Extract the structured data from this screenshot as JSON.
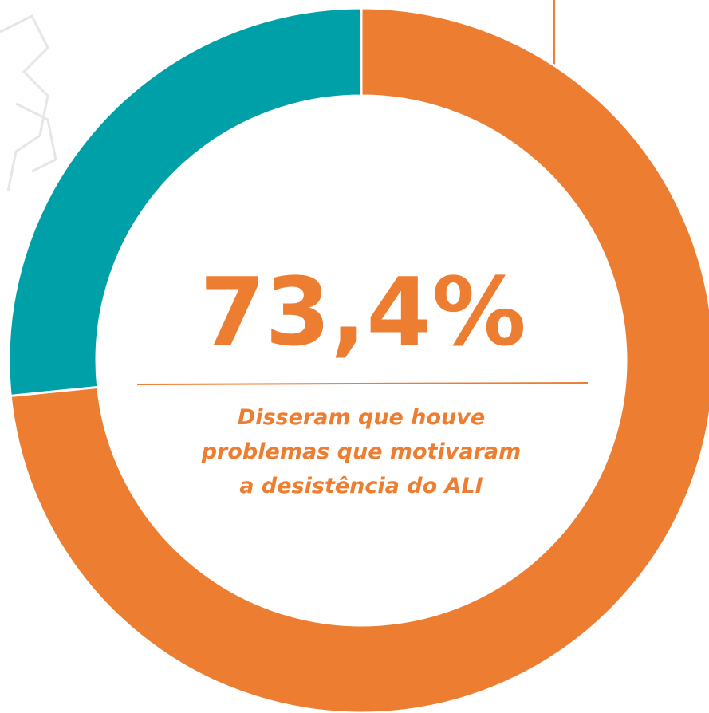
{
  "chart_data": {
    "type": "donut",
    "values": [
      73.4,
      26.6
    ],
    "value_labels": [
      "73,4%",
      null
    ],
    "colors": [
      "#ed7d31",
      "#00a0a8"
    ],
    "caption": [
      "Disseram que houve",
      "problemas que motivaram",
      "a desistência do ALI"
    ],
    "label_color": "#ed7d31"
  }
}
